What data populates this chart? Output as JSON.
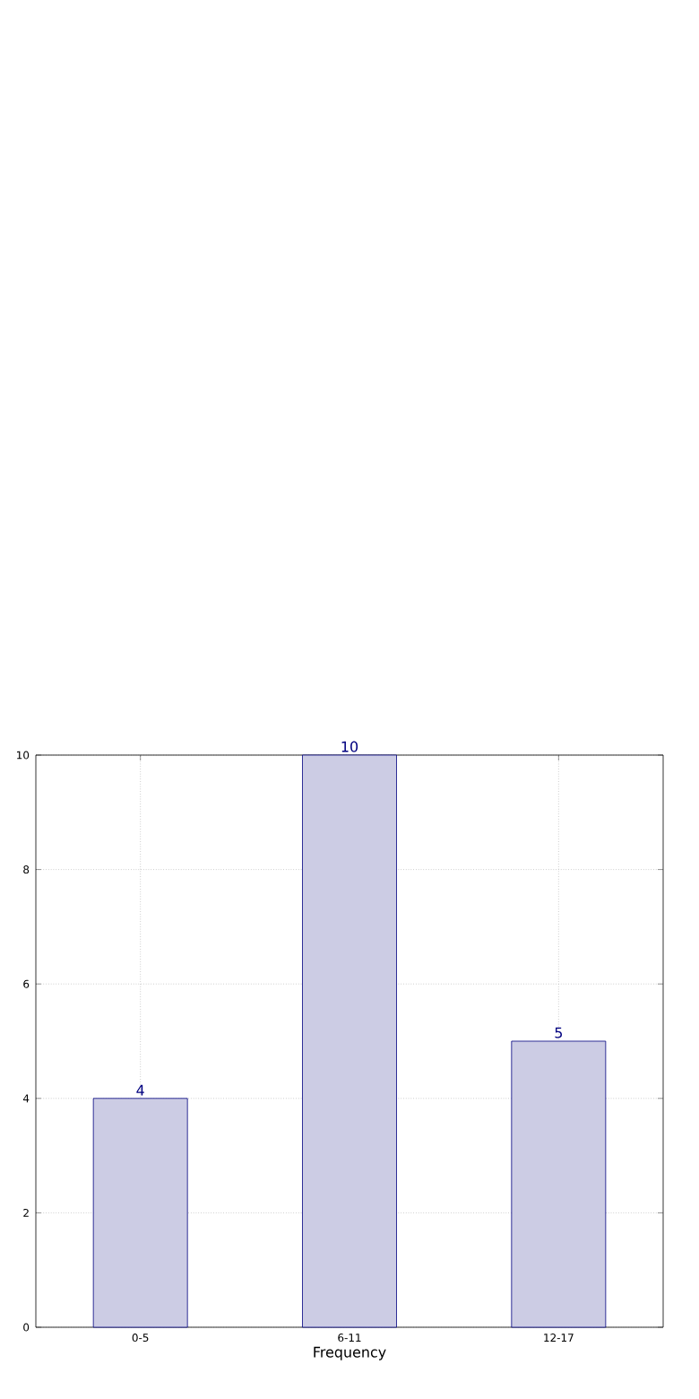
{
  "chart_data": {
    "type": "bar",
    "xlabel": "Frequency",
    "categories": [
      "0-5",
      "6-11",
      "12-17"
    ],
    "values": [
      4,
      10,
      5
    ],
    "color": "#ccccE4",
    "ylim": [
      0,
      10
    ],
    "yticks": [
      0,
      2,
      4,
      6,
      8,
      10
    ],
    "grid": true,
    "data_labels": true
  }
}
